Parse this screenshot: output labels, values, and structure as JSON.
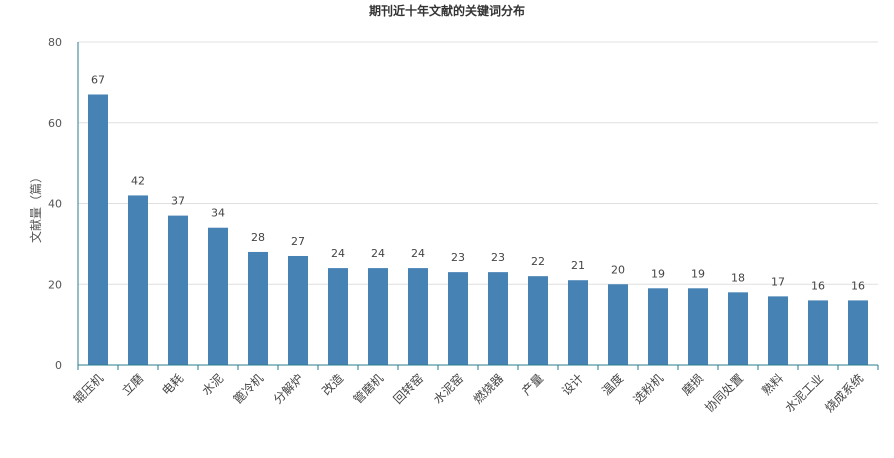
{
  "chart_data": {
    "type": "bar",
    "title": "期刊近十年文献的关键词分布",
    "xlabel": "",
    "ylabel": "文献量（篇）",
    "ylim": [
      0,
      80
    ],
    "yticks": [
      0,
      20,
      40,
      60,
      80
    ],
    "grid": true,
    "legend": "none",
    "bar_color": "#4682b4",
    "categories": [
      "辊压机",
      "立磨",
      "电耗",
      "水泥",
      "篦冷机",
      "分解炉",
      "改造",
      "管磨机",
      "回转窑",
      "水泥窑",
      "燃烧器",
      "产量",
      "设计",
      "温度",
      "选粉机",
      "磨损",
      "协同处置",
      "熟料",
      "水泥工业",
      "烧成系统"
    ],
    "values": [
      67,
      42,
      37,
      34,
      28,
      27,
      24,
      24,
      24,
      23,
      23,
      22,
      21,
      20,
      19,
      19,
      18,
      17,
      16,
      16
    ]
  }
}
